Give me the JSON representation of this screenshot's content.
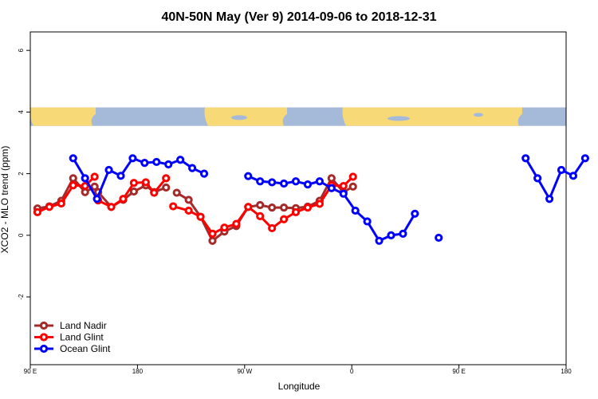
{
  "chart_data": {
    "type": "line",
    "title": "40N-50N May (Ver 9)   2014-09-06 to 2018-12-31",
    "xlabel": "Longitude",
    "ylabel": "XCO2 - MLO trend (ppm)",
    "x_ticks": [
      {
        "lon": 90,
        "label": "90 E"
      },
      {
        "lon": 180,
        "label": "180"
      },
      {
        "lon": 270,
        "label": "90 W"
      },
      {
        "lon": 360,
        "label": "0"
      },
      {
        "lon": 450,
        "label": "90 E"
      },
      {
        "lon": 540,
        "label": "180"
      }
    ],
    "y_ticks": [
      -2,
      0,
      2,
      4,
      6
    ],
    "xlim": [
      90,
      540
    ],
    "ylim": [
      -4.2,
      6.6
    ],
    "map_band": {
      "ymin": 3.55,
      "ymax": 4.15,
      "ocean": "#A5B9D9",
      "land": "#F8D978"
    },
    "legend_position": "bottom-left",
    "series": [
      {
        "name": "Land Nadir",
        "color": "#A52A2A",
        "segments": [
          [
            [
              96,
              0.87
            ],
            [
              106,
              0.94
            ],
            [
              116,
              1.12
            ],
            [
              126,
              1.85
            ],
            [
              136,
              1.4
            ],
            [
              144,
              1.58
            ]
          ],
          [
            [
              147,
              1.4
            ],
            [
              158,
              0.92
            ],
            [
              168,
              1.15
            ],
            [
              177,
              1.42
            ],
            [
              187,
              1.62
            ],
            [
              194,
              1.4
            ],
            [
              204,
              1.55
            ]
          ],
          [
            [
              213,
              1.38
            ],
            [
              223,
              1.15
            ],
            [
              233,
              0.6
            ],
            [
              243,
              -0.18
            ],
            [
              253,
              0.12
            ],
            [
              263,
              0.3
            ],
            [
              273,
              0.92
            ],
            [
              283,
              0.98
            ],
            [
              293,
              0.9
            ],
            [
              303,
              0.9
            ],
            [
              313,
              0.88
            ],
            [
              323,
              0.93
            ],
            [
              333,
              1.12
            ],
            [
              343,
              1.85
            ],
            [
              353,
              1.4
            ],
            [
              361,
              1.58
            ]
          ]
        ]
      },
      {
        "name": "Land Glint",
        "color": "#FF0000",
        "segments": [
          [
            [
              96,
              0.75
            ],
            [
              106,
              0.92
            ],
            [
              116,
              1.03
            ],
            [
              126,
              1.62
            ],
            [
              136,
              1.6
            ],
            [
              144,
              1.9
            ]
          ],
          [
            [
              147,
              1.13
            ],
            [
              158,
              0.92
            ],
            [
              168,
              1.18
            ],
            [
              177,
              1.7
            ],
            [
              187,
              1.72
            ],
            [
              194,
              1.38
            ],
            [
              204,
              1.85
            ]
          ],
          [
            [
              210,
              0.94
            ],
            [
              223,
              0.8
            ],
            [
              233,
              0.6
            ],
            [
              243,
              0.05
            ],
            [
              253,
              0.25
            ],
            [
              263,
              0.37
            ],
            [
              273,
              0.92
            ],
            [
              283,
              0.62
            ],
            [
              293,
              0.23
            ],
            [
              303,
              0.52
            ],
            [
              313,
              0.75
            ],
            [
              323,
              0.9
            ],
            [
              333,
              1.02
            ],
            [
              343,
              1.62
            ],
            [
              353,
              1.6
            ],
            [
              361,
              1.9
            ]
          ]
        ]
      },
      {
        "name": "Ocean Glint",
        "color": "#0000FF",
        "segments": [
          [
            [
              126,
              2.5
            ],
            [
              136,
              1.85
            ],
            [
              146,
              1.18
            ],
            [
              156,
              2.12
            ],
            [
              166,
              1.93
            ],
            [
              176,
              2.5
            ],
            [
              186,
              2.35
            ],
            [
              196,
              2.38
            ],
            [
              206,
              2.3
            ],
            [
              216,
              2.45
            ],
            [
              226,
              2.18
            ],
            [
              236,
              2.0
            ]
          ],
          [
            [
              273,
              1.92
            ],
            [
              283,
              1.75
            ],
            [
              293,
              1.72
            ],
            [
              303,
              1.68
            ],
            [
              313,
              1.75
            ],
            [
              323,
              1.65
            ],
            [
              333,
              1.75
            ],
            [
              343,
              1.53
            ],
            [
              353,
              1.35
            ],
            [
              363,
              0.8
            ],
            [
              373,
              0.45
            ],
            [
              383,
              -0.18
            ],
            [
              393,
              0.0
            ],
            [
              403,
              0.05
            ],
            [
              413,
              0.7
            ]
          ],
          [
            [
              433,
              -0.08
            ]
          ],
          [
            [
              506,
              2.5
            ],
            [
              516,
              1.85
            ],
            [
              526,
              1.18
            ],
            [
              536,
              2.12
            ],
            [
              546,
              1.93
            ],
            [
              556,
              2.5
            ]
          ]
        ]
      }
    ]
  }
}
